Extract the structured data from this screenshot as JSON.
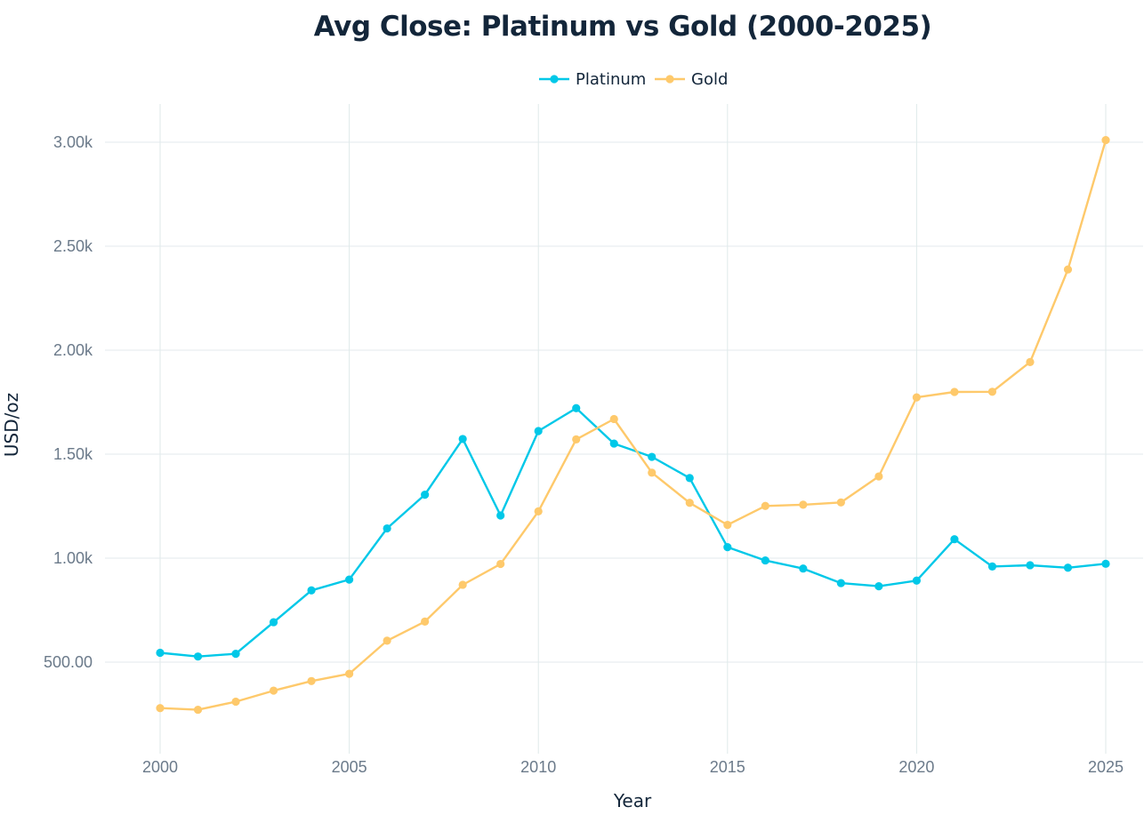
{
  "chart_data": {
    "type": "line",
    "title": "Avg Close: Platinum vs Gold (2000-2025)",
    "xlabel": "Year",
    "ylabel": "USD/oz",
    "x": [
      2000,
      2001,
      2002,
      2003,
      2004,
      2005,
      2006,
      2007,
      2008,
      2009,
      2010,
      2011,
      2012,
      2013,
      2014,
      2015,
      2016,
      2017,
      2018,
      2019,
      2020,
      2021,
      2022,
      2023,
      2024,
      2025
    ],
    "xlim": [
      1999.4,
      2025.55
    ],
    "ylim": [
      130,
      3190
    ],
    "x_ticks": [
      2000,
      2005,
      2010,
      2015,
      2020,
      2025
    ],
    "x_tick_labels": [
      "2000",
      "2005",
      "2010",
      "2015",
      "2020",
      "2025"
    ],
    "y_ticks": [
      500,
      1000,
      1500,
      2000,
      2500,
      3000
    ],
    "y_tick_labels": [
      "500.00",
      "1.00k",
      "1.50k",
      "2.00k",
      "2.50k",
      "3.00k"
    ],
    "grid": true,
    "legend_position": "top-center",
    "series": [
      {
        "name": "Platinum",
        "color": "#00c8e8",
        "values": [
          545,
          527,
          540,
          692,
          845,
          897,
          1143,
          1305,
          1573,
          1205,
          1611,
          1721,
          1551,
          1487,
          1385,
          1053,
          989,
          950,
          880,
          865,
          892,
          1091,
          960,
          966,
          954,
          973
        ]
      },
      {
        "name": "Gold",
        "color": "#fec96b",
        "values": [
          279,
          271,
          310,
          363,
          409,
          444,
          603,
          695,
          872,
          972,
          1225,
          1571,
          1669,
          1411,
          1266,
          1160,
          1251,
          1257,
          1268,
          1393,
          1773,
          1799,
          1800,
          1943,
          2388,
          3010
        ]
      }
    ]
  }
}
